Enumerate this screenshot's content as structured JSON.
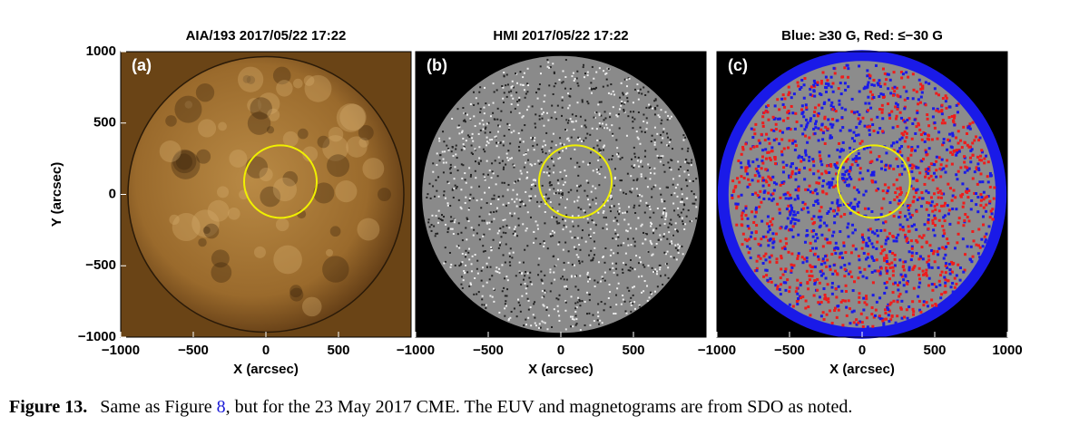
{
  "figure": {
    "panels": [
      {
        "title": "AIA/193 2017/05/22 17:22",
        "label": "(a)",
        "xlabel": "X (arcsec)",
        "ylabel": "Y (arcsec)",
        "xlim": [
          -1000,
          1000
        ],
        "ylim": [
          -1000,
          1000
        ],
        "xticks": [
          {
            "value": -1000,
            "label": "−1000"
          },
          {
            "value": -500,
            "label": "−500"
          },
          0,
          500
        ],
        "yticks": [
          {
            "value": -1000,
            "label": "−1000"
          },
          {
            "value": -500,
            "label": "−500"
          },
          0,
          500,
          1000
        ]
      },
      {
        "title": "HMI 2017/05/22 17:22",
        "label": "(b)",
        "xlabel": "X (arcsec)",
        "xlim": [
          -1000,
          1000
        ],
        "ylim": [
          -1000,
          1000
        ],
        "xticks": [
          {
            "value": -1000,
            "label": "−1000"
          },
          {
            "value": -500,
            "label": "−500"
          },
          0,
          500
        ]
      },
      {
        "title": "Blue: ≥30 G, Red: ≤−30 G",
        "label": "(c)",
        "xlabel": "X (arcsec)",
        "xlim": [
          -1000,
          1000
        ],
        "ylim": [
          -1000,
          1000
        ],
        "xticks": [
          {
            "value": -1000,
            "label": "−1000"
          },
          {
            "value": -500,
            "label": "−500"
          },
          0,
          500,
          1000
        ]
      }
    ],
    "caption": {
      "label": "Figure 13.",
      "before": "Same as Figure ",
      "link": "8",
      "after": ", but for the 23 May 2017 CME. The EUV and magnetograms are from SDO as noted."
    }
  }
}
